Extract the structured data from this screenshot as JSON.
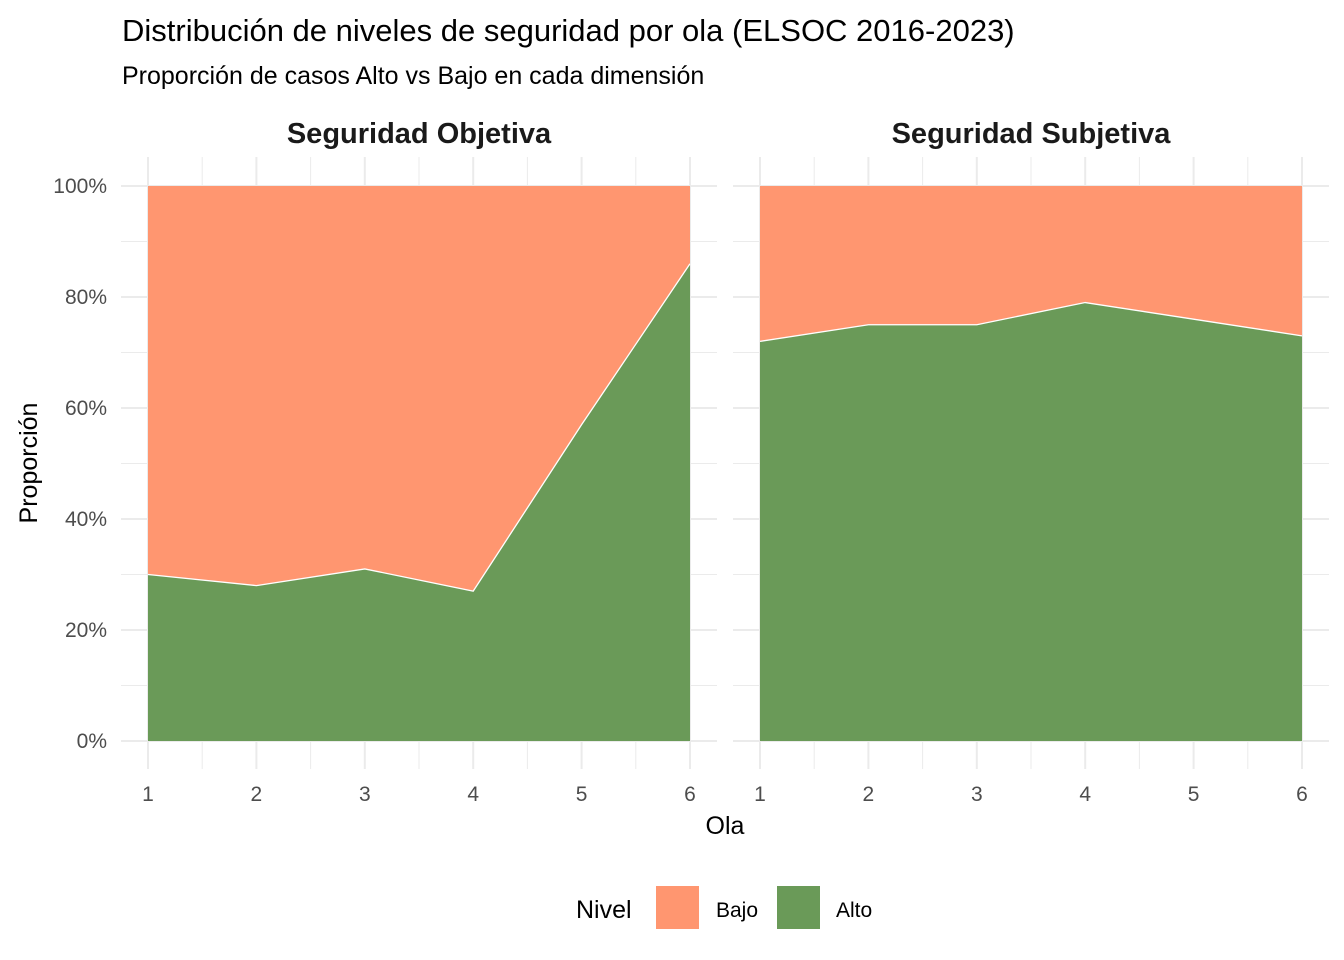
{
  "title": "Distribución de niveles de seguridad por ola (ELSOC 2016-2023)",
  "subtitle": "Proporción de casos Alto vs Bajo en cada dimensión",
  "colors": {
    "Bajo": "#ff9670",
    "Alto": "#6a9a58",
    "grid": "#ebebeb",
    "background": "#ffffff"
  },
  "chart_data": {
    "type": "area",
    "stacked": true,
    "normalized": true,
    "xlabel": "Ola",
    "ylabel": "Proporción",
    "x": [
      1,
      2,
      3,
      4,
      5,
      6
    ],
    "xlim": [
      1,
      6
    ],
    "ylim": [
      0,
      1
    ],
    "y_ticks": [
      0,
      0.2,
      0.4,
      0.6,
      0.8,
      1.0
    ],
    "y_tick_labels": [
      "0%",
      "20%",
      "40%",
      "60%",
      "80%",
      "100%"
    ],
    "x_tick_labels": [
      "1",
      "2",
      "3",
      "4",
      "5",
      "6"
    ],
    "grid": true,
    "legend": {
      "title": "Nivel",
      "position": "bottom",
      "entries": [
        "Bajo",
        "Alto"
      ]
    },
    "facets": [
      {
        "label": "Seguridad Objetiva",
        "series": [
          {
            "name": "Alto",
            "values": [
              0.3,
              0.28,
              0.31,
              0.27,
              0.57,
              0.86
            ]
          },
          {
            "name": "Bajo",
            "values": [
              0.7,
              0.72,
              0.69,
              0.73,
              0.43,
              0.14
            ]
          }
        ]
      },
      {
        "label": "Seguridad Subjetiva",
        "series": [
          {
            "name": "Alto",
            "values": [
              0.72,
              0.75,
              0.75,
              0.79,
              0.76,
              0.73
            ]
          },
          {
            "name": "Bajo",
            "values": [
              0.28,
              0.25,
              0.25,
              0.21,
              0.24,
              0.27
            ]
          }
        ]
      }
    ]
  }
}
